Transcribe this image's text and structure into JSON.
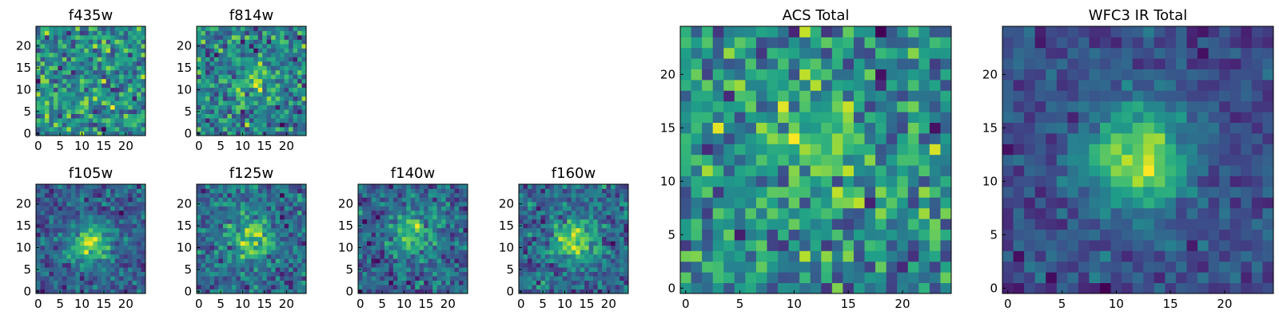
{
  "chart_data": {
    "type": "heatmap",
    "colormap": "viridis",
    "pixel_grid": [
      25,
      25
    ],
    "panels": [
      {
        "title": "f435w",
        "x_ticks": [
          "0",
          "5",
          "10",
          "15",
          "20"
        ],
        "y_ticks": [
          "0",
          "5",
          "10",
          "15",
          "20"
        ],
        "xlim": [
          0,
          24
        ],
        "ylim": [
          0,
          24
        ],
        "source_peak": [
          12,
          12
        ],
        "source_strength": 0.0,
        "noise_level": 0.95,
        "background": 0.7,
        "seed": 11
      },
      {
        "title": "f814w",
        "x_ticks": [
          "0",
          "5",
          "10",
          "15",
          "20"
        ],
        "y_ticks": [
          "0",
          "5",
          "10",
          "15",
          "20"
        ],
        "xlim": [
          0,
          24
        ],
        "ylim": [
          0,
          24
        ],
        "source_peak": [
          13,
          12
        ],
        "source_strength": 0.35,
        "noise_level": 0.75,
        "background": 0.6,
        "seed": 23
      },
      {
        "title": "f105w",
        "x_ticks": [
          "0",
          "5",
          "10",
          "15",
          "20"
        ],
        "y_ticks": [
          "0",
          "5",
          "10",
          "15",
          "20"
        ],
        "xlim": [
          0,
          24
        ],
        "ylim": [
          0,
          24
        ],
        "source_peak": [
          12,
          11
        ],
        "source_strength": 0.75,
        "noise_level": 0.45,
        "background": 0.45,
        "seed": 37
      },
      {
        "title": "f125w",
        "x_ticks": [
          "0",
          "5",
          "10",
          "15",
          "20"
        ],
        "y_ticks": [
          "0",
          "5",
          "10",
          "15",
          "20"
        ],
        "xlim": [
          0,
          24
        ],
        "ylim": [
          0,
          24
        ],
        "source_peak": [
          12,
          12
        ],
        "source_strength": 0.6,
        "noise_level": 0.5,
        "background": 0.55,
        "seed": 41
      },
      {
        "title": "f140w",
        "x_ticks": [
          "0",
          "5",
          "10",
          "15",
          "20"
        ],
        "y_ticks": [
          "0",
          "5",
          "10",
          "15",
          "20"
        ],
        "xlim": [
          0,
          24
        ],
        "ylim": [
          0,
          24
        ],
        "source_peak": [
          12,
          13
        ],
        "source_strength": 0.65,
        "noise_level": 0.55,
        "background": 0.45,
        "seed": 53
      },
      {
        "title": "f160w",
        "x_ticks": [
          "0",
          "5",
          "10",
          "15",
          "20"
        ],
        "y_ticks": [
          "0",
          "5",
          "10",
          "15",
          "20"
        ],
        "xlim": [
          0,
          24
        ],
        "ylim": [
          0,
          24
        ],
        "source_peak": [
          12,
          12
        ],
        "source_strength": 0.75,
        "noise_level": 0.5,
        "background": 0.45,
        "seed": 67
      },
      {
        "title": "ACS Total",
        "x_ticks": [
          "0",
          "5",
          "10",
          "15",
          "20"
        ],
        "y_ticks": [
          "0",
          "5",
          "10",
          "15",
          "20"
        ],
        "xlim": [
          0,
          24
        ],
        "ylim": [
          0,
          24
        ],
        "source_peak": [
          12,
          13
        ],
        "source_strength": 0.25,
        "noise_level": 0.6,
        "background": 0.62,
        "seed": 79
      },
      {
        "title": "WFC3 IR Total",
        "x_ticks": [
          "0",
          "5",
          "10",
          "15",
          "20"
        ],
        "y_ticks": [
          "0",
          "5",
          "10",
          "15",
          "20"
        ],
        "xlim": [
          0,
          24
        ],
        "ylim": [
          0,
          24
        ],
        "source_peak": [
          12,
          12
        ],
        "source_strength": 0.85,
        "noise_level": 0.3,
        "background": 0.38,
        "seed": 97
      }
    ]
  }
}
